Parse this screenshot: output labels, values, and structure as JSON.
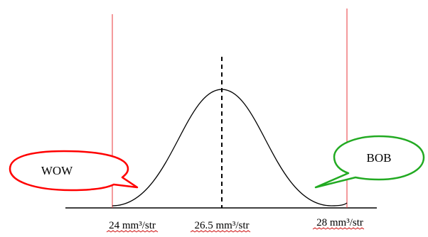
{
  "diagram": {
    "callouts": {
      "left": {
        "text": "WOW",
        "color": "#ff0000"
      },
      "right": {
        "text": "BOB",
        "color": "#22aa22"
      }
    },
    "tick_labels": {
      "lower": "24 mm³/str",
      "center": "26.5 mm³/str",
      "upper": "28 mm³/str"
    },
    "colors": {
      "limit_lines": "#e8363a",
      "curve": "#000000",
      "axis": "#000000",
      "squiggle": "#cc0000"
    }
  }
}
